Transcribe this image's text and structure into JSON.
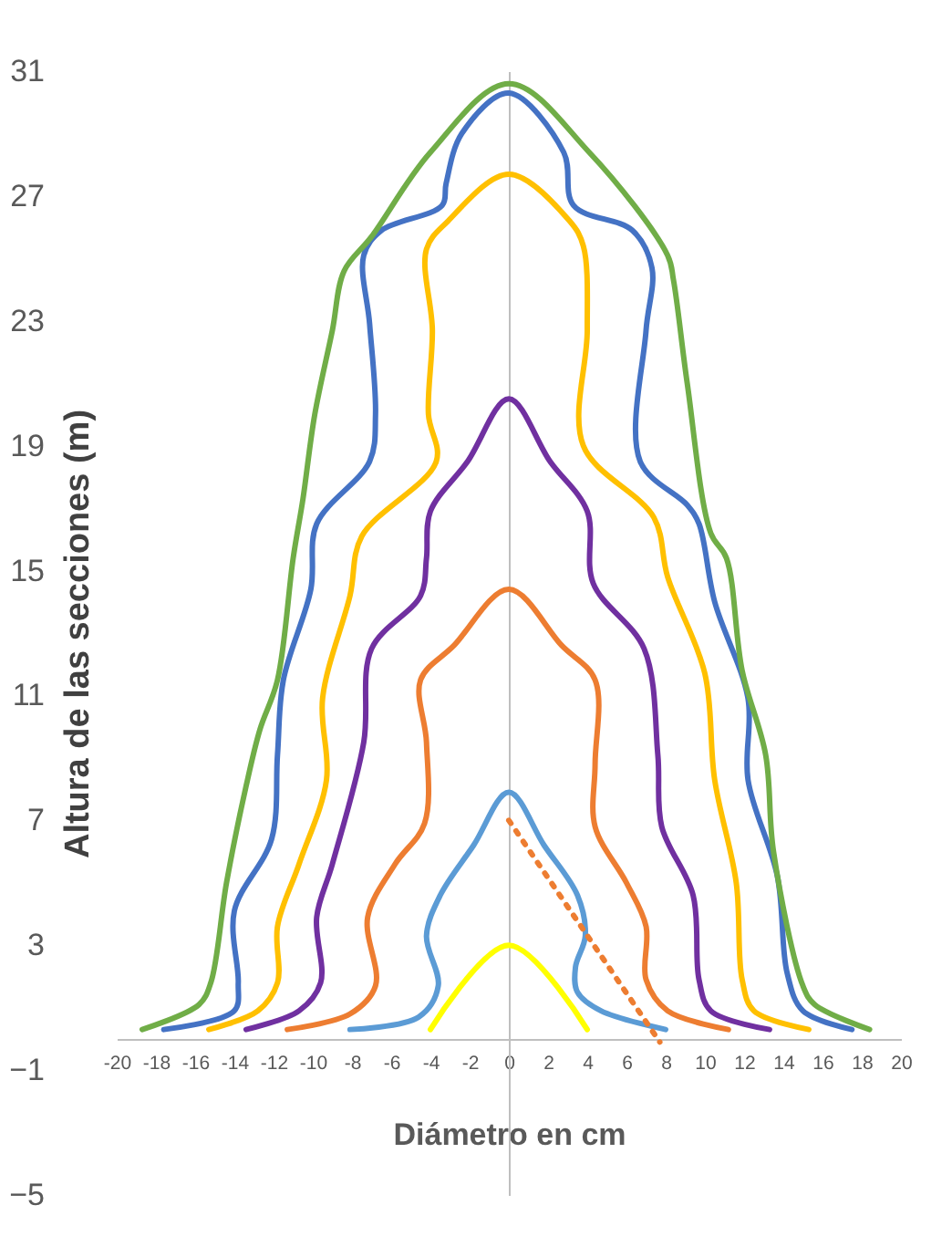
{
  "chart_data": {
    "type": "line",
    "xlabel": "Diámetro en cm",
    "ylabel": "Altura de las secciones (m)",
    "xlim": [
      -20,
      20
    ],
    "ylim": [
      -5,
      31
    ],
    "xticks": [
      -20,
      -18,
      -16,
      -14,
      -12,
      -10,
      -8,
      -6,
      -4,
      -2,
      0,
      2,
      4,
      6,
      8,
      10,
      12,
      14,
      16,
      18,
      20
    ],
    "yticks": [
      -5,
      -1,
      3,
      7,
      11,
      15,
      19,
      23,
      27,
      31
    ],
    "series": [
      {
        "color": "#ffff00",
        "x": [
          -4,
          0,
          4
        ],
        "values": [
          0.3,
          3,
          0.3
        ]
      },
      {
        "color": "#5b9bd5",
        "x": [
          -8.1,
          -4.6,
          -3.6,
          -4.2,
          -3.5,
          -1.8,
          0,
          1.8,
          3.5,
          3.9,
          3.4,
          3.5,
          4.7,
          8
        ],
        "values": [
          0.3,
          0.7,
          1.7,
          3.3,
          4.6,
          6.2,
          7.9,
          6.2,
          4.6,
          3.3,
          2.3,
          1.5,
          0.9,
          0.3
        ]
      },
      {
        "color": "#ed7d31",
        "x": [
          -11.3,
          -8.1,
          -6.8,
          -7.2,
          -5.8,
          -4.3,
          -4.2,
          -4.5,
          -2.8,
          0,
          2.7,
          4.4,
          4.4,
          4.4,
          6,
          7,
          7,
          8.1,
          11.2
        ],
        "values": [
          0.3,
          0.8,
          1.7,
          3.9,
          5.6,
          6.9,
          9.5,
          11.5,
          12.6,
          14.4,
          12.6,
          11.5,
          8.8,
          6.8,
          5,
          3.6,
          1.9,
          0.9,
          0.3
        ]
      },
      {
        "color": "#7030a0",
        "x": [
          -13.4,
          -10.7,
          -9.6,
          -9.8,
          -9,
          -7.4,
          -7,
          -4.5,
          -4.2,
          -4,
          -2.1,
          0,
          2.1,
          4,
          4.3,
          6.9,
          7.6,
          7.8,
          9.4,
          9.7,
          10.3,
          13.3
        ],
        "values": [
          0.3,
          0.9,
          1.8,
          3.9,
          5.6,
          9.5,
          12.5,
          14.2,
          15.4,
          16.9,
          18.5,
          20.5,
          18.5,
          16.9,
          14.6,
          12.5,
          9.1,
          6.8,
          4.6,
          1.9,
          0.9,
          0.3
        ]
      },
      {
        "color": "#ffc000",
        "x": [
          -15.3,
          -12.8,
          -11.8,
          -11.8,
          -10.7,
          -9.3,
          -9.5,
          -8.1,
          -7.5,
          -3.7,
          -4.1,
          -3.9,
          -4.2,
          -3.1,
          0,
          3.1,
          3.8,
          4,
          3.8,
          7.4,
          8.1,
          10,
          10.5,
          11.6,
          11.9,
          12.5,
          15.3
        ],
        "values": [
          0.3,
          0.9,
          1.8,
          3.6,
          5.6,
          8.3,
          10.9,
          14.2,
          16.1,
          18.5,
          20,
          22.7,
          25.3,
          26.2,
          27.7,
          26.2,
          25.4,
          22.7,
          19,
          16.7,
          14.8,
          11.7,
          8.3,
          5,
          1.9,
          0.9,
          0.3
        ]
      },
      {
        "color": "#4472c4",
        "x": [
          -17.6,
          -14,
          -13.8,
          -14,
          -12.1,
          -11.8,
          -11.5,
          -10.1,
          -9.8,
          -7.1,
          -6.8,
          -7.1,
          -7.4,
          -6.5,
          -3.4,
          -3.2,
          -2.4,
          0,
          2.8,
          3.3,
          6.3,
          7.3,
          7,
          6.7,
          9.1,
          9.7,
          10.5,
          12.2,
          12.2,
          13.7,
          14.2,
          15,
          17.5
        ],
        "values": [
          0.3,
          0.9,
          1.8,
          4.1,
          6.4,
          9.1,
          11.5,
          14.4,
          16.5,
          18.5,
          20,
          22.9,
          25.1,
          25.9,
          26.7,
          27.4,
          29,
          30.3,
          28.4,
          26.7,
          25.9,
          24.7,
          22.7,
          18.5,
          17.1,
          16.5,
          14,
          10.9,
          8.3,
          5.2,
          2.1,
          0.9,
          0.3
        ]
      },
      {
        "color": "#70ad47",
        "x": [
          -18.7,
          -15.8,
          -15.2,
          -14.4,
          -13.4,
          -12.7,
          -11.8,
          -11,
          -10.5,
          -9.9,
          -9,
          -8.4,
          -7,
          -4,
          0,
          4.1,
          8.1,
          8.4,
          9.1,
          10.3,
          11.1,
          11.9,
          13.1,
          13.5,
          15,
          15.6,
          18.4
        ],
        "values": [
          0.3,
          1.1,
          1.8,
          5,
          8.1,
          9.9,
          11.5,
          15.4,
          17.3,
          20,
          22.7,
          24.6,
          25.7,
          28.4,
          30.6,
          28.4,
          25.1,
          24.3,
          21,
          16.2,
          15.4,
          11.8,
          9.1,
          6,
          1.7,
          1.1,
          0.3
        ]
      },
      {
        "color": "#ed7d31",
        "line_style": "dotted",
        "x": [
          0,
          7.7
        ],
        "values": [
          7,
          -0.1
        ]
      }
    ]
  }
}
